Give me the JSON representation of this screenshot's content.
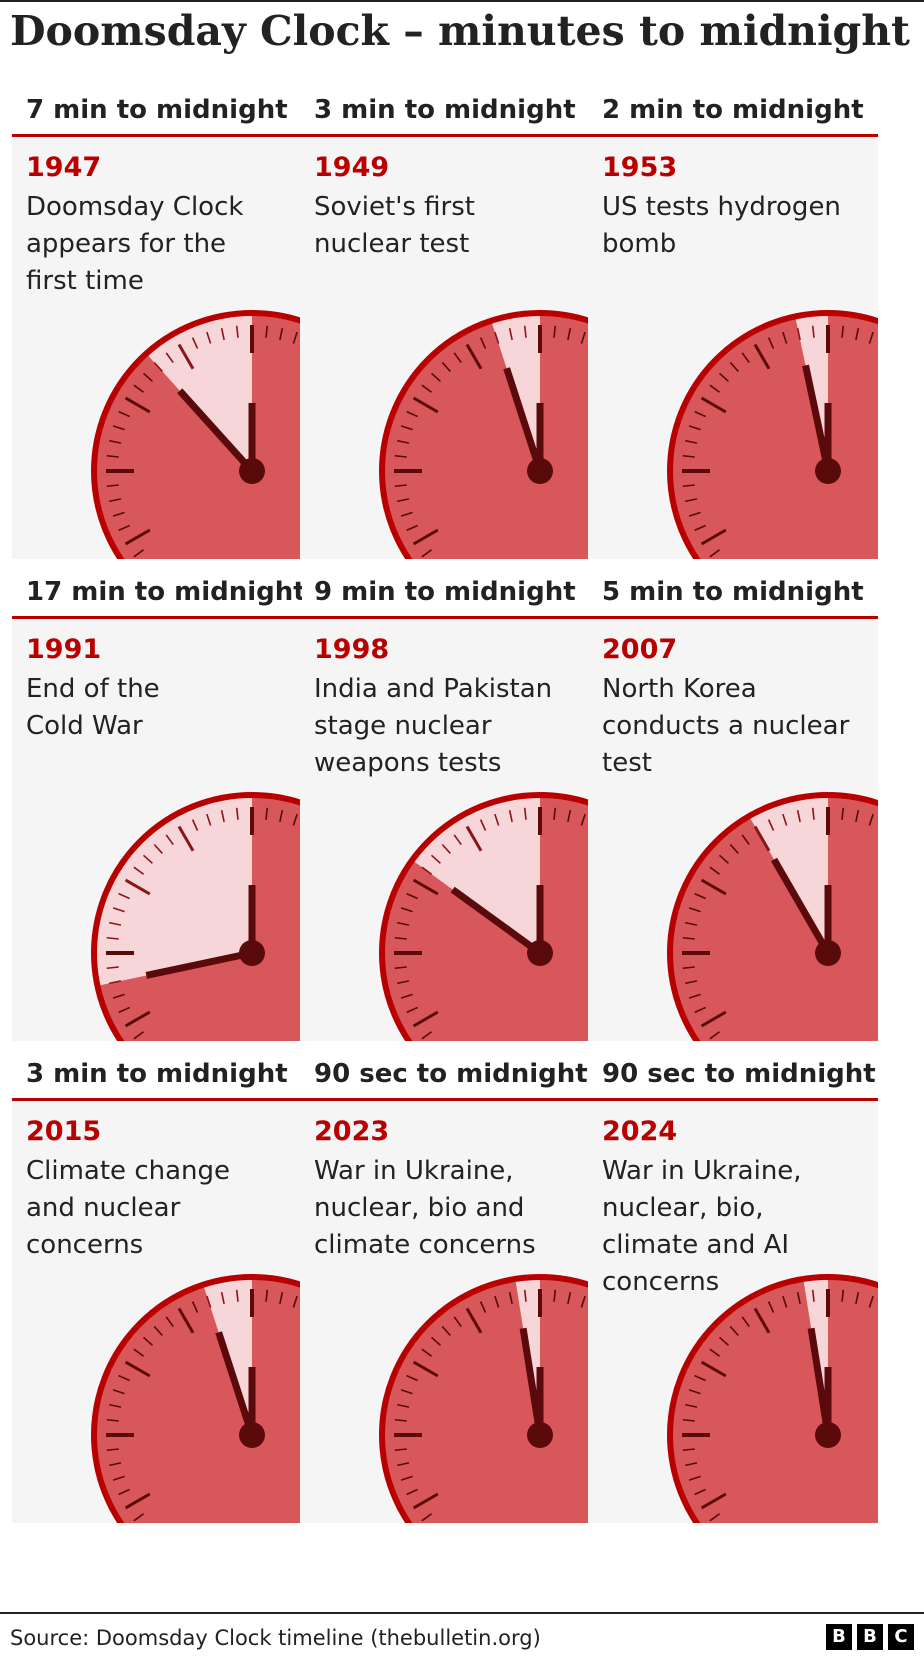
{
  "title": "Doomsday Clock – minutes to midnight",
  "colors": {
    "accent_red": "#b80000",
    "clock_face": "#d7575a",
    "clock_elapsed": "#f6d6d8",
    "clock_rim": "#b80000",
    "hands": "#5a0a0a",
    "card_bg": "#f5f5f5"
  },
  "panels": [
    {
      "header": "7 min to midnight",
      "year": "1947",
      "description": "Doomsday Clock\nappears for the\nfirst time",
      "minutes": 7
    },
    {
      "header": "3 min to midnight",
      "year": "1949",
      "description": "Soviet's first\nnuclear test",
      "minutes": 3
    },
    {
      "header": "2 min to midnight",
      "year": "1953",
      "description": "US tests hydrogen\nbomb",
      "minutes": 2
    },
    {
      "header": "17 min to midnight",
      "year": "1991",
      "description": "End of the\nCold War",
      "minutes": 17
    },
    {
      "header": "9 min to midnight",
      "year": "1998",
      "description": "India and Pakistan\nstage nuclear\nweapons tests",
      "minutes": 9
    },
    {
      "header": "5 min to midnight",
      "year": "2007",
      "description": "North Korea\nconducts a nuclear\ntest",
      "minutes": 5
    },
    {
      "header": "3 min to midnight",
      "year": "2015",
      "description": "Climate change\nand nuclear\nconcerns",
      "minutes": 3
    },
    {
      "header": "90 sec to midnight",
      "year": "2023",
      "description": "War in Ukraine,\nnuclear, bio and\nclimate concerns",
      "minutes": 1.5
    },
    {
      "header": "90 sec to midnight",
      "year": "2024",
      "description": "War in Ukraine,\nnuclear, bio,\nclimate and AI\nconcerns",
      "minutes": 1.5
    }
  ],
  "footer": {
    "source": "Source: Doomsday Clock timeline (thebulletin.org)",
    "logo_letters": [
      "B",
      "B",
      "C"
    ]
  }
}
